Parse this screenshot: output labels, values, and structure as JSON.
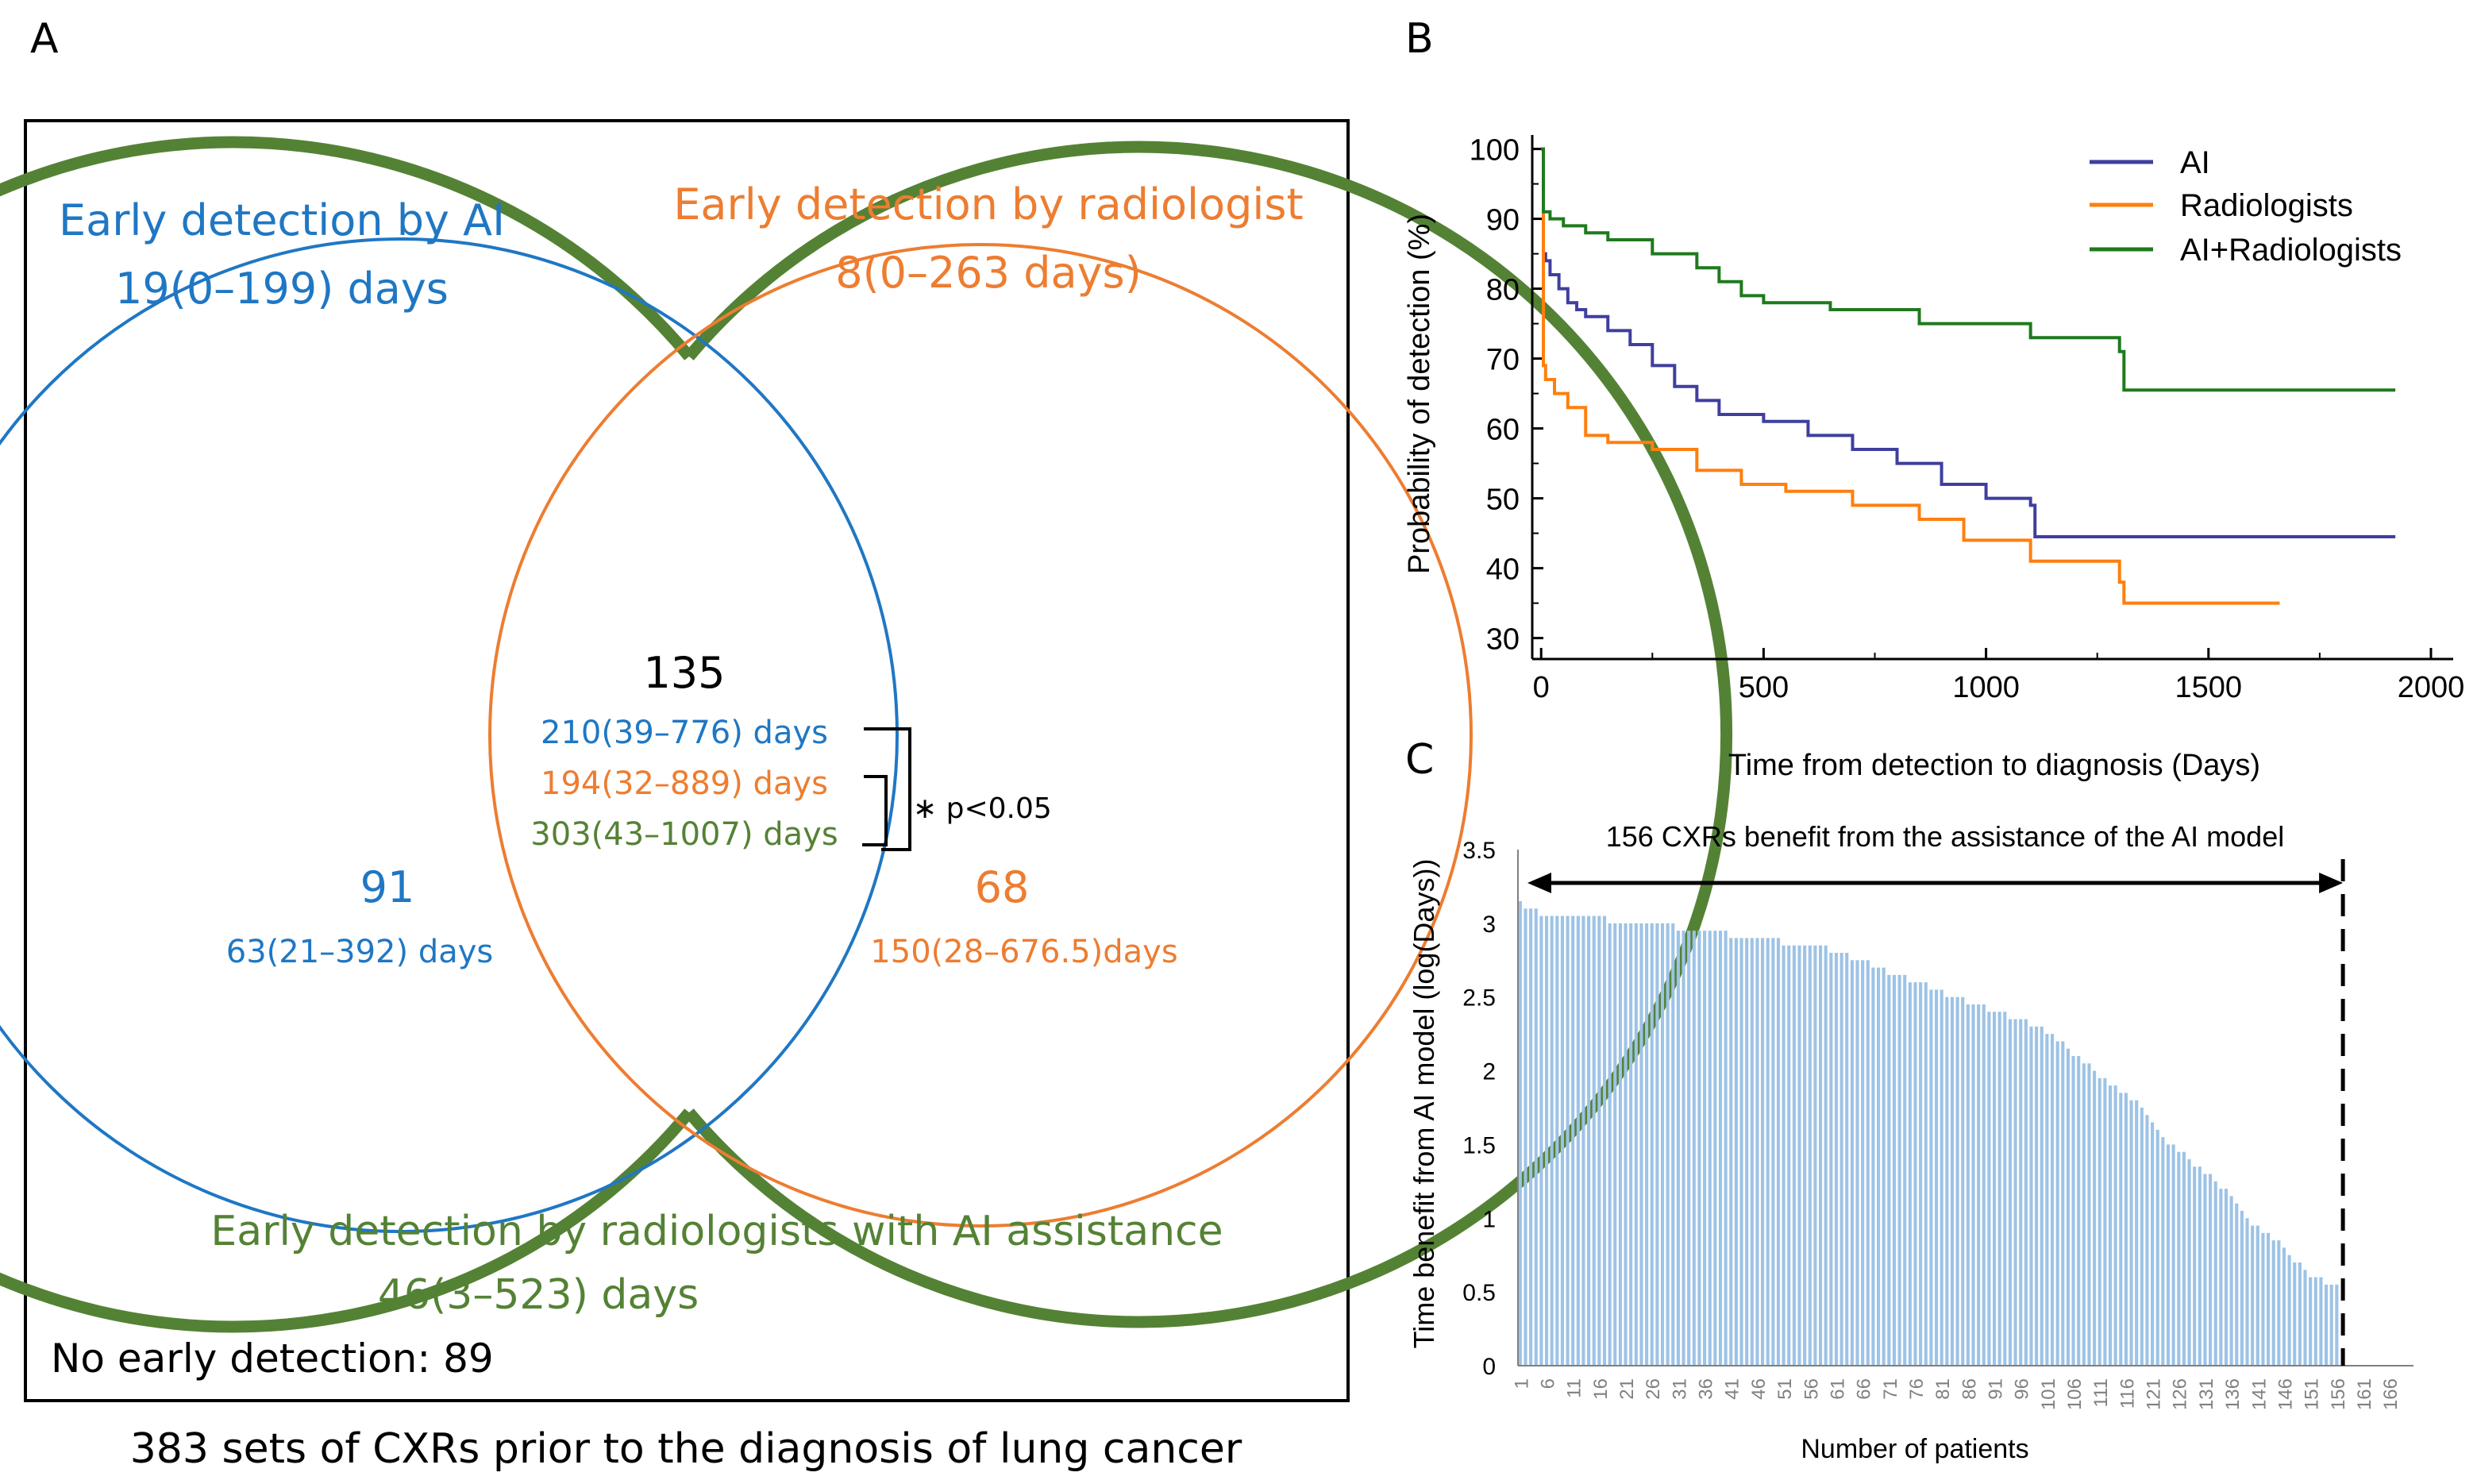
{
  "panel_labels": {
    "a": "A",
    "b": "B",
    "c": "C"
  },
  "colors": {
    "ai": "#1f77c4",
    "rad": "#ed7d31",
    "combo": "#548235",
    "curve_ai": "#3f3f9f",
    "curve_rad": "#ff7f0e",
    "curve_combo": "#1e7a1e",
    "bar": "#9dc3e6",
    "text": "#000000"
  },
  "venn": {
    "ai_title": "Early detection by AI",
    "ai_days": "19(0–199) days",
    "rad_title": "Early detection by radiologist",
    "rad_days": "8(0–263 days)",
    "overlap_count": "135",
    "overlap_ai_days": "210(39–776) days",
    "overlap_rad_days": "194(32–889) days",
    "overlap_combo_days": "303(43–1007) days",
    "significance": "∗ p<0.05",
    "ai_only_count": "91",
    "ai_only_days": "63(21–392) days",
    "rad_only_count": "68",
    "rad_only_days": "150(28–676.5)days",
    "combo_title": "Early detection by radiologists with AI assistance",
    "combo_days": "46(3–523) days",
    "no_detection": "No early detection: 89",
    "caption": "383 sets of CXRs prior to the diagnosis of lung cancer"
  },
  "chart_data": [
    {
      "type": "line",
      "title": "",
      "xlabel": "Time from detection to diagnosis (Days)",
      "ylabel": "Probability of detection (%)",
      "xlim": [
        -20,
        2050
      ],
      "ylim": [
        27,
        102
      ],
      "xticks": [
        0,
        500,
        1000,
        1500,
        2000
      ],
      "yticks": [
        30,
        40,
        50,
        60,
        70,
        80,
        90,
        100
      ],
      "legend_position": "top-right",
      "series": [
        {
          "name": "AI",
          "x": [
            0,
            5,
            10,
            20,
            40,
            60,
            80,
            100,
            150,
            200,
            250,
            300,
            350,
            400,
            500,
            600,
            700,
            800,
            900,
            1000,
            1100,
            1110,
            1920
          ],
          "y": [
            100,
            85,
            84,
            82,
            80,
            78,
            77,
            76,
            74,
            72,
            69,
            66,
            64,
            62,
            61,
            59,
            57,
            55,
            52,
            50,
            49,
            44.5,
            44.5
          ]
        },
        {
          "name": "Radiologists",
          "x": [
            0,
            5,
            10,
            30,
            60,
            100,
            150,
            250,
            350,
            450,
            550,
            700,
            850,
            950,
            1100,
            1300,
            1310,
            1660
          ],
          "y": [
            100,
            69,
            67,
            65,
            63,
            59,
            58,
            57,
            54,
            52,
            51,
            49,
            47,
            44,
            41,
            38,
            35,
            35
          ]
        },
        {
          "name": "AI+Radiologists",
          "x": [
            0,
            5,
            20,
            50,
            100,
            150,
            250,
            350,
            400,
            450,
            500,
            650,
            850,
            1100,
            1300,
            1310,
            1920
          ],
          "y": [
            100,
            91,
            90,
            89,
            88,
            87,
            85,
            83,
            81,
            79,
            78,
            77,
            75,
            73,
            71,
            65.5,
            65.5
          ]
        }
      ]
    },
    {
      "type": "bar",
      "title": "",
      "annotation": "156 CXRs benefit from the assistance of the AI model",
      "xlabel": "Number of patients",
      "ylabel": "Time benefit from AI model (log(Days))",
      "ylim": [
        0,
        3.5
      ],
      "yticks": [
        0,
        0.5,
        1,
        1.5,
        2,
        2.5,
        3,
        3.5
      ],
      "xticks": [
        1,
        6,
        11,
        16,
        21,
        26,
        31,
        36,
        41,
        46,
        51,
        56,
        61,
        66,
        71,
        76,
        81,
        86,
        91,
        96,
        101,
        106,
        111,
        116,
        121,
        126,
        131,
        136,
        141,
        146,
        151,
        156,
        161,
        166
      ],
      "n_bars": 156,
      "n_slots": 170,
      "profile_x": [
        1,
        2,
        4,
        6,
        20,
        40,
        60,
        80,
        90,
        100,
        110,
        120,
        122,
        128,
        134,
        140,
        143,
        148,
        151,
        153,
        156
      ],
      "profile_y": [
        3.15,
        3.12,
        3.08,
        3.05,
        3.02,
        2.93,
        2.82,
        2.55,
        2.42,
        2.3,
        2.0,
        1.72,
        1.58,
        1.4,
        1.22,
        0.95,
        0.9,
        0.72,
        0.6,
        0.58,
        0.55
      ]
    }
  ]
}
